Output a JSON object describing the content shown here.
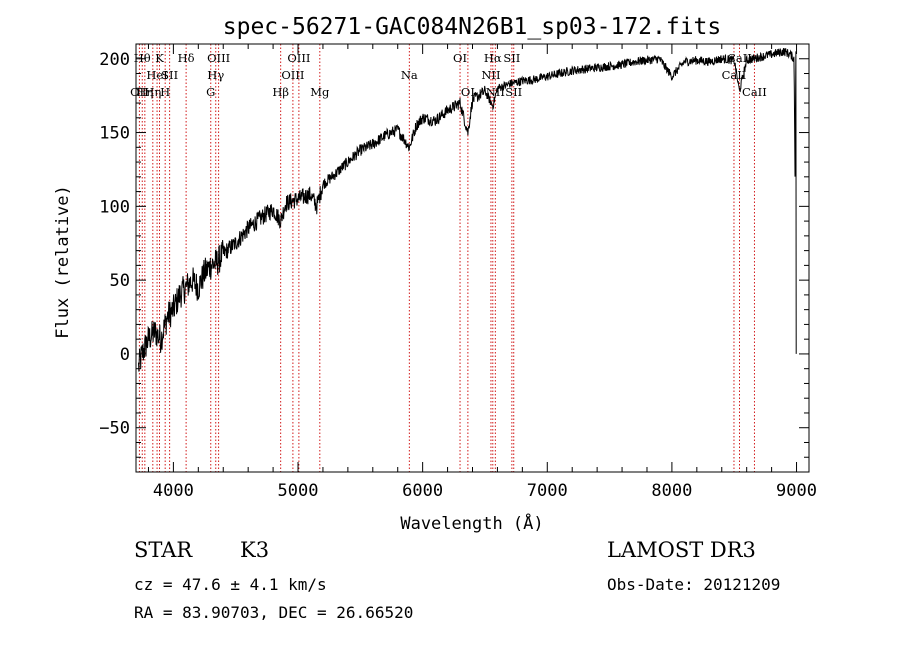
{
  "chart_data": {
    "type": "line",
    "title": "spec-56271-GAC084N26B1_sp03-172.fits",
    "xlabel": "Wavelength (Å)",
    "ylabel": "Flux (relative)",
    "xlim": [
      3700,
      9100
    ],
    "ylim": [
      -80,
      210
    ],
    "x_ticks": [
      4000,
      5000,
      6000,
      7000,
      8000,
      9000
    ],
    "y_ticks": [
      -50,
      0,
      50,
      100,
      150,
      200
    ],
    "x_minor_step": 200,
    "y_minor_step": 10,
    "grid": false,
    "line_color": "#000000",
    "marker_color": "#cc0000",
    "series": [
      {
        "name": "flux",
        "x": [
          3700,
          3750,
          3800,
          3850,
          3900,
          3950,
          4000,
          4050,
          4100,
          4150,
          4200,
          4250,
          4300,
          4350,
          4400,
          4500,
          4600,
          4700,
          4800,
          4861,
          4900,
          5000,
          5100,
          5150,
          5200,
          5300,
          5400,
          5500,
          5600,
          5700,
          5800,
          5893,
          5950,
          6000,
          6100,
          6200,
          6300,
          6363,
          6400,
          6500,
          6563,
          6600,
          6700,
          6800,
          6900,
          7000,
          7100,
          7200,
          7300,
          7400,
          7500,
          7600,
          7700,
          7800,
          7900,
          8000,
          8100,
          8200,
          8300,
          8400,
          8500,
          8542,
          8600,
          8700,
          8800,
          8900,
          8950,
          8980,
          9000
        ],
        "y": [
          -15,
          0,
          10,
          15,
          10,
          25,
          30,
          40,
          45,
          50,
          45,
          55,
          60,
          62,
          68,
          75,
          85,
          92,
          98,
          90,
          102,
          105,
          108,
          100,
          115,
          122,
          130,
          138,
          142,
          148,
          152,
          140,
          155,
          160,
          158,
          165,
          170,
          150,
          172,
          178,
          168,
          180,
          183,
          185,
          186,
          188,
          190,
          192,
          193,
          194,
          195,
          196,
          198,
          199,
          200,
          188,
          198,
          199,
          198,
          200,
          199,
          178,
          199,
          201,
          203,
          205,
          203,
          200,
          0
        ]
      }
    ],
    "lines": [
      {
        "wl": 3727,
        "label": "OII",
        "row": 2
      },
      {
        "wl": 3750,
        "label": "Hθ",
        "row": 0
      },
      {
        "wl": 3771,
        "label": "Hη",
        "row": 2
      },
      {
        "wl": 3835,
        "label": "Hη",
        "row": 2
      },
      {
        "wl": 3869,
        "label": "HeI",
        "row": 1
      },
      {
        "wl": 3889,
        "label": "K",
        "row": 0
      },
      {
        "wl": 3934,
        "label": "H",
        "row": 2
      },
      {
        "wl": 3970,
        "label": "SII",
        "row": 1
      },
      {
        "wl": 4102,
        "label": "Hδ",
        "row": 0
      },
      {
        "wl": 4300,
        "label": "G",
        "row": 2
      },
      {
        "wl": 4340,
        "label": "Hγ",
        "row": 1
      },
      {
        "wl": 4363,
        "label": "OIII",
        "row": 0
      },
      {
        "wl": 4861,
        "label": "Hβ",
        "row": 2
      },
      {
        "wl": 4959,
        "label": "OIII",
        "row": 1
      },
      {
        "wl": 5007,
        "label": "OIII",
        "row": 0
      },
      {
        "wl": 5175,
        "label": "Mg",
        "row": 2
      },
      {
        "wl": 5893,
        "label": "Na",
        "row": 1
      },
      {
        "wl": 6300,
        "label": "OI",
        "row": 0
      },
      {
        "wl": 6363,
        "label": "OI",
        "row": 2
      },
      {
        "wl": 6548,
        "label": "NII",
        "row": 1
      },
      {
        "wl": 6563,
        "label": "Hα",
        "row": 0
      },
      {
        "wl": 6583,
        "label": "NII",
        "row": 2
      },
      {
        "wl": 6716,
        "label": "SII",
        "row": 0
      },
      {
        "wl": 6731,
        "label": "SII",
        "row": 2
      },
      {
        "wl": 8498,
        "label": "CaII",
        "row": 1
      },
      {
        "wl": 8542,
        "label": "CaII",
        "row": 0
      },
      {
        "wl": 8662,
        "label": "CaII",
        "row": 2
      }
    ]
  },
  "info": {
    "class_label": "STAR",
    "subclass": "K3",
    "survey": "LAMOST DR3",
    "cz_line": "cz = 47.6 ± 4.1 km/s",
    "obs_date": "Obs-Date: 20121209",
    "coords": "RA =  83.90703, DEC =  26.66520"
  }
}
